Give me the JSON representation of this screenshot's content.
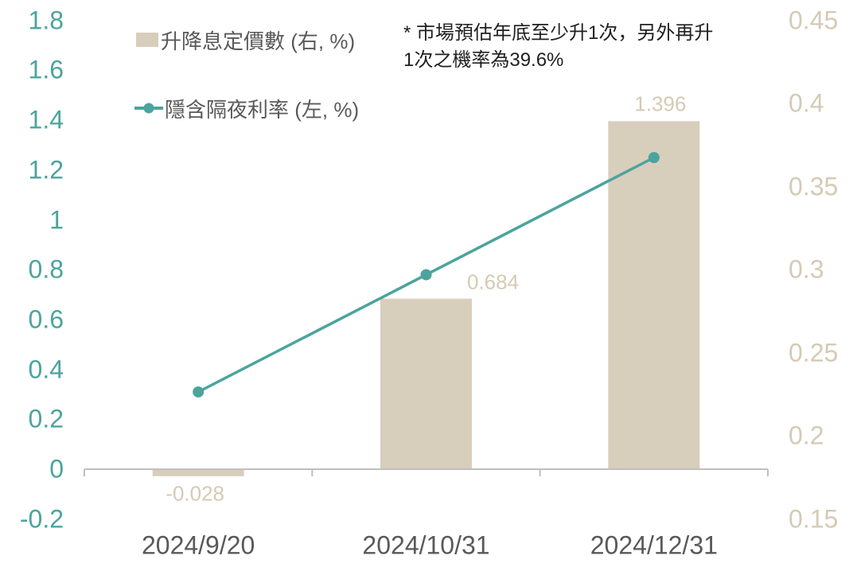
{
  "chart_data": {
    "type": "combo-bar-line",
    "title": "",
    "categories": [
      "2024/9/20",
      "2024/10/31",
      "2024/12/31"
    ],
    "series": [
      {
        "name": "升降息定價數 (右, %)",
        "type": "bar",
        "values": [
          -0.028,
          0.684,
          1.396
        ],
        "data_labels": [
          "-0.028",
          "0.684",
          "1.396"
        ],
        "color": "#D8CEBC"
      },
      {
        "name": "隱含隔夜利率 (左, %)",
        "type": "line",
        "values": [
          0.31,
          0.78,
          1.25
        ],
        "color": "#4BA49D"
      }
    ],
    "axes": {
      "left": {
        "ticks": [
          "1.8",
          "1.6",
          "1.4",
          "1.2",
          "1",
          "0.8",
          "0.6",
          "0.4",
          "0.2",
          "0",
          "-0.2"
        ],
        "max": 1.8,
        "min": -0.2,
        "label_color": "#4BA49D"
      },
      "right": {
        "ticks": [
          "0.45",
          "0.4",
          "0.35",
          "0.3",
          "0.25",
          "0.2",
          "0.15"
        ],
        "max": 0.45,
        "min": 0.15,
        "label_color": "#D5CAB5"
      }
    },
    "annotation": "* 市場預估年底至少升1次，另外再升\n1次之機率為39.6%",
    "legend_position": "top-left",
    "grid": false
  },
  "colors": {
    "bar": "#D8CEBC",
    "line": "#4BA49D",
    "axis_line": "#BFBFBF",
    "category_label": "#595959",
    "legend_text": "#595959",
    "annotation_text": "#1F1F1F",
    "data_label": "#D5CAB5"
  }
}
